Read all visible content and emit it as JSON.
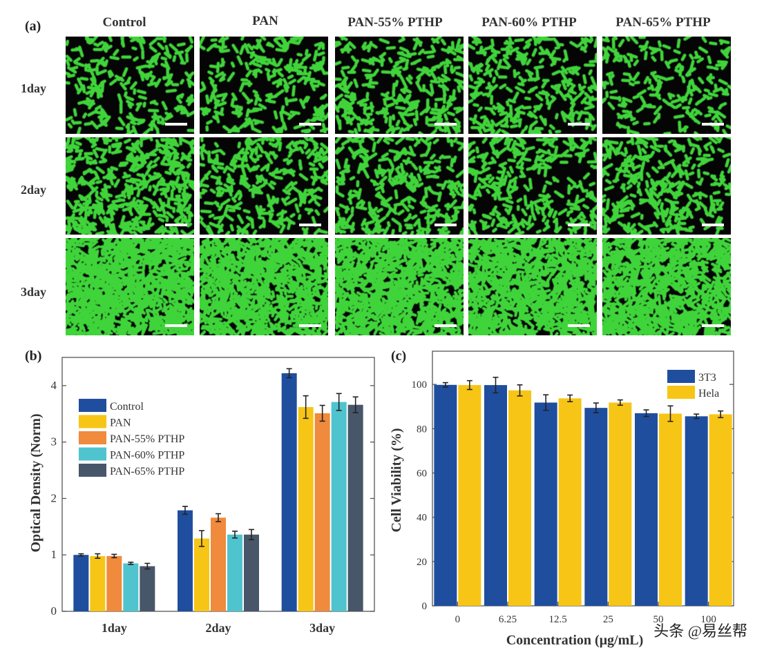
{
  "panel_a": {
    "label": "(a)",
    "columns": [
      "Control",
      "PAN",
      "PAN-55% PTHP",
      "PAN-60% PTHP",
      "PAN-65% PTHP"
    ],
    "rows": [
      "1day",
      "2day",
      "3day"
    ],
    "colors": {
      "cell": "#3fd43a",
      "background": "#050505",
      "scale_bar": "#ffffff"
    }
  },
  "chart_data": [
    {
      "panel": "(b)",
      "type": "bar",
      "categories": [
        "1day",
        "2day",
        "3day"
      ],
      "series": [
        {
          "name": "Control",
          "color": "#1f4e9e",
          "values": [
            1.0,
            1.79,
            4.22
          ],
          "errors": [
            0.02,
            0.07,
            0.08
          ]
        },
        {
          "name": "PAN",
          "color": "#f7c515",
          "values": [
            0.98,
            1.29,
            3.62
          ],
          "errors": [
            0.04,
            0.14,
            0.2
          ]
        },
        {
          "name": "PAN-55% PTHP",
          "color": "#f08a3c",
          "values": [
            0.98,
            1.66,
            3.51
          ],
          "errors": [
            0.03,
            0.07,
            0.14
          ]
        },
        {
          "name": "PAN-60% PTHP",
          "color": "#4fc4cf",
          "values": [
            0.85,
            1.36,
            3.71
          ],
          "errors": [
            0.02,
            0.06,
            0.15
          ]
        },
        {
          "name": "PAN-65% PTHP",
          "color": "#48566a",
          "values": [
            0.8,
            1.36,
            3.66
          ],
          "errors": [
            0.05,
            0.09,
            0.14
          ]
        }
      ],
      "title": "",
      "xlabel": "",
      "ylabel": "Optical Density (Norm)",
      "ylim": [
        0,
        4.5
      ],
      "yticks": [
        "0",
        "1",
        "2",
        "3",
        "4"
      ],
      "legend_position": "top-left"
    },
    {
      "panel": "(c)",
      "type": "bar",
      "categories": [
        "0",
        "6.25",
        "12.5",
        "25",
        "50",
        "100"
      ],
      "series": [
        {
          "name": "3T3",
          "color": "#1f4e9e",
          "values": [
            99.8,
            99.7,
            91.8,
            89.4,
            87.0,
            85.6
          ],
          "errors": [
            1.0,
            3.5,
            3.5,
            2.2,
            1.5,
            1.0
          ]
        },
        {
          "name": "Hela",
          "color": "#f7c515",
          "values": [
            99.7,
            97.3,
            93.7,
            91.8,
            86.8,
            86.5
          ],
          "errors": [
            2.0,
            2.5,
            1.5,
            1.2,
            3.5,
            1.5
          ]
        }
      ],
      "title": "",
      "xlabel": "Concentration (μg/mL)",
      "ylabel": "Cell Viability (%)",
      "ylim": [
        0,
        115
      ],
      "yticks": [
        "0",
        "20",
        "40",
        "60",
        "80",
        "100"
      ],
      "legend_position": "top-right"
    }
  ],
  "watermark": "头条 @易丝帮"
}
